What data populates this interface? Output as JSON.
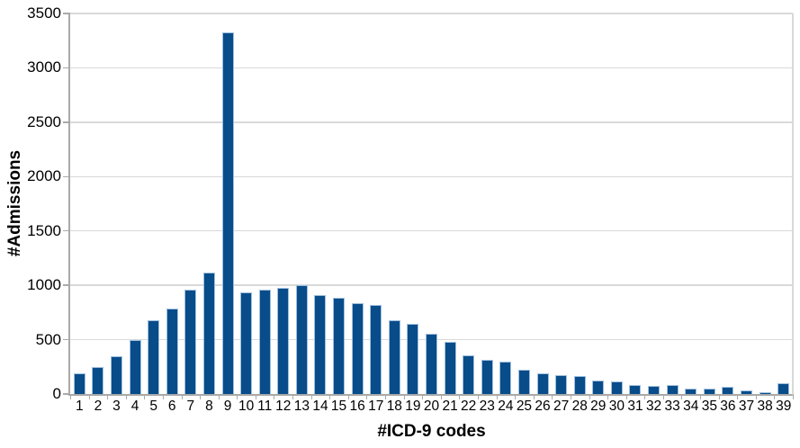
{
  "chart_data": {
    "type": "bar",
    "title": "",
    "xlabel": "#ICD-9 codes",
    "ylabel": "#Admissions",
    "categories": [
      "1",
      "2",
      "3",
      "4",
      "5",
      "6",
      "7",
      "8",
      "9",
      "10",
      "11",
      "12",
      "13",
      "14",
      "15",
      "16",
      "17",
      "18",
      "19",
      "20",
      "21",
      "22",
      "23",
      "24",
      "25",
      "26",
      "27",
      "28",
      "29",
      "30",
      "31",
      "32",
      "33",
      "34",
      "35",
      "36",
      "37",
      "38",
      "39"
    ],
    "values": [
      185,
      240,
      340,
      490,
      670,
      780,
      955,
      1110,
      3315,
      930,
      950,
      965,
      990,
      900,
      880,
      825,
      810,
      670,
      640,
      545,
      475,
      350,
      310,
      290,
      218,
      186,
      168,
      158,
      120,
      104,
      78,
      68,
      74,
      42,
      45,
      55,
      26,
      12,
      88
    ],
    "ylim": [
      0,
      3500
    ],
    "yticks": [
      0,
      500,
      1000,
      1500,
      2000,
      2500,
      3000,
      3500
    ],
    "grid": "horizontal",
    "legend": "none",
    "colors": {
      "bar_fill": "#084c8a",
      "bar_border": "#9fc0de",
      "gridline": "#d9d9d9",
      "axis": "#a9a9a9",
      "text": "#000000",
      "background": "#ffffff"
    }
  }
}
